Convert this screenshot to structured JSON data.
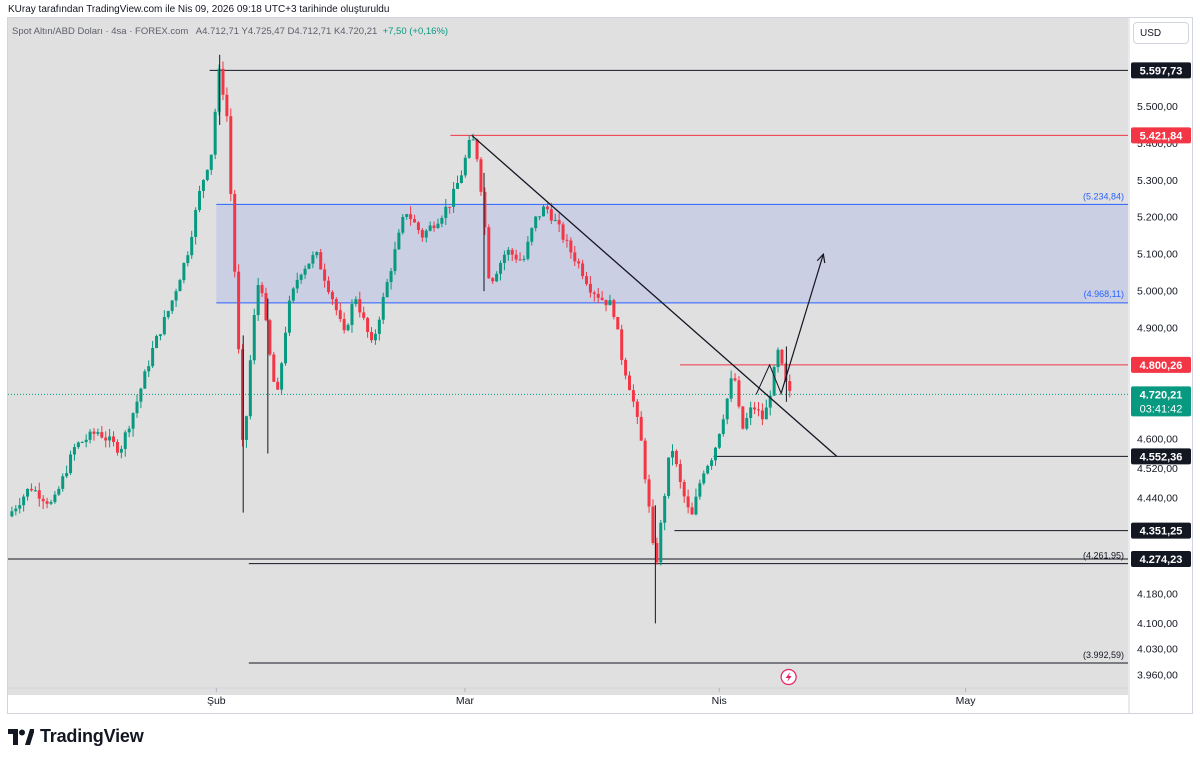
{
  "header": {
    "published_line": "KUray tarafından TradingView.com ile Nis 09, 2026 09:18 UTC+3 tarihinde oluşturuldu",
    "symbol": "Spot Altın/ABD Doları · 4sa · FOREX.com",
    "ohlc_prefix": "A4.712,71  Y4.725,47  D4.712,71  K4.720,21",
    "change": "+7,50 (+0,16%)",
    "currency_button": "USD"
  },
  "footer": {
    "brand": "TradingView"
  },
  "colors": {
    "up": "#089981",
    "down": "#f23645",
    "zone_fill": "#c5cbe3",
    "zone_line": "#2962ff",
    "red_line": "#f23645",
    "black": "#131722",
    "axis_text": "#131722"
  },
  "chart_data": {
    "type": "candlestick",
    "title": "Spot Altın/ABD Doları",
    "timeframe": "4sa",
    "ylim": [
      3925,
      5680
    ],
    "y_ticks": [
      {
        "value": 5500,
        "label": "5.500,00"
      },
      {
        "value": 5400,
        "label": "5.400,00"
      },
      {
        "value": 5300,
        "label": "5.300,00"
      },
      {
        "value": 5200,
        "label": "5.200,00"
      },
      {
        "value": 5100,
        "label": "5.100,00"
      },
      {
        "value": 5000,
        "label": "5.000,00"
      },
      {
        "value": 4900,
        "label": "4.900,00"
      },
      {
        "value": 4600,
        "label": "4.600,00"
      },
      {
        "value": 4520,
        "label": "4.520,00"
      },
      {
        "value": 4440,
        "label": "4.440,00"
      },
      {
        "value": 4180,
        "label": "4.180,00"
      },
      {
        "value": 4100,
        "label": "4.100,00"
      },
      {
        "value": 4030,
        "label": "4.030,00"
      },
      {
        "value": 3960,
        "label": "3.960,00"
      }
    ],
    "x_labels": [
      {
        "label": "Şub",
        "t": 0.186
      },
      {
        "label": "Mar",
        "t": 0.408
      },
      {
        "label": "Nis",
        "t": 0.635
      },
      {
        "label": "May",
        "t": 0.855
      }
    ],
    "price_badges": [
      {
        "value": 5597.73,
        "label": "5.597,73",
        "style": "black"
      },
      {
        "value": 5421.84,
        "label": "5.421,84",
        "style": "red"
      },
      {
        "value": 4800.26,
        "label": "4.800,26",
        "style": "red"
      },
      {
        "value": 4720.21,
        "label": "4.720,21",
        "countdown": "03:41:42",
        "style": "green"
      },
      {
        "value": 4552.36,
        "label": "4.552,36",
        "style": "black"
      },
      {
        "value": 4351.25,
        "label": "4.351,25",
        "style": "black"
      },
      {
        "value": 4274.23,
        "label": "4.274,23",
        "style": "black"
      }
    ],
    "zone": {
      "top": 5234.84,
      "bottom": 4968.11,
      "top_label": "(5.234,84)",
      "bottom_label": "(4.968,11)"
    },
    "level_labels": [
      {
        "value": 4261.95,
        "label": "(4.261,95)"
      },
      {
        "value": 3992.59,
        "label": "(3.992,59)"
      }
    ],
    "horizontal_lines": [
      {
        "value": 5597.73,
        "t_from": 0.18,
        "t_to": 1.0,
        "color": "black"
      },
      {
        "value": 5421.84,
        "t_from": 0.395,
        "t_to": 1.0,
        "color": "red"
      },
      {
        "value": 4800.26,
        "t_from": 0.6,
        "t_to": 1.0,
        "color": "red"
      },
      {
        "value": 4552.36,
        "t_from": 0.63,
        "t_to": 1.0,
        "color": "black"
      },
      {
        "value": 4351.25,
        "t_from": 0.595,
        "t_to": 1.0,
        "color": "black"
      },
      {
        "value": 4274.23,
        "t_from": 0.0,
        "t_to": 1.0,
        "color": "black"
      },
      {
        "value": 4261.95,
        "t_from": 0.215,
        "t_to": 1.0,
        "color": "black"
      },
      {
        "value": 3992.59,
        "t_from": 0.215,
        "t_to": 1.0,
        "color": "black"
      }
    ],
    "trendline": {
      "t1": 0.414,
      "v1": 5421.84,
      "t2": 0.74,
      "v2": 4552.36
    },
    "projection": [
      {
        "t": 0.69,
        "v": 4720
      },
      {
        "t": 0.728,
        "v": 5100
      }
    ],
    "small_zigzag": [
      {
        "t": 0.668,
        "v": 4720
      },
      {
        "t": 0.68,
        "v": 4800
      },
      {
        "t": 0.69,
        "v": 4725
      }
    ],
    "price_path": [
      [
        0.0,
        4390
      ],
      [
        0.02,
        4470
      ],
      [
        0.04,
        4420
      ],
      [
        0.06,
        4580
      ],
      [
        0.08,
        4620
      ],
      [
        0.1,
        4570
      ],
      [
        0.115,
        4700
      ],
      [
        0.13,
        4850
      ],
      [
        0.145,
        4960
      ],
      [
        0.16,
        5100
      ],
      [
        0.172,
        5280
      ],
      [
        0.182,
        5380
      ],
      [
        0.188,
        5597
      ],
      [
        0.195,
        5500
      ],
      [
        0.2,
        5200
      ],
      [
        0.205,
        4900
      ],
      [
        0.21,
        4540
      ],
      [
        0.218,
        4880
      ],
      [
        0.225,
        5060
      ],
      [
        0.232,
        4860
      ],
      [
        0.24,
        4700
      ],
      [
        0.25,
        4950
      ],
      [
        0.26,
        5050
      ],
      [
        0.275,
        5100
      ],
      [
        0.29,
        4980
      ],
      [
        0.3,
        4880
      ],
      [
        0.31,
        4990
      ],
      [
        0.325,
        4850
      ],
      [
        0.34,
        5040
      ],
      [
        0.355,
        5220
      ],
      [
        0.37,
        5150
      ],
      [
        0.385,
        5200
      ],
      [
        0.395,
        5240
      ],
      [
        0.405,
        5320
      ],
      [
        0.414,
        5421
      ],
      [
        0.42,
        5350
      ],
      [
        0.425,
        5200
      ],
      [
        0.43,
        5020
      ],
      [
        0.445,
        5110
      ],
      [
        0.46,
        5080
      ],
      [
        0.47,
        5190
      ],
      [
        0.48,
        5230
      ],
      [
        0.49,
        5180
      ],
      [
        0.5,
        5120
      ],
      [
        0.51,
        5070
      ],
      [
        0.52,
        5010
      ],
      [
        0.53,
        4980
      ],
      [
        0.54,
        4960
      ],
      [
        0.548,
        4820
      ],
      [
        0.557,
        4720
      ],
      [
        0.565,
        4600
      ],
      [
        0.572,
        4420
      ],
      [
        0.578,
        4240
      ],
      [
        0.585,
        4420
      ],
      [
        0.592,
        4590
      ],
      [
        0.6,
        4480
      ],
      [
        0.61,
        4380
      ],
      [
        0.62,
        4510
      ],
      [
        0.63,
        4560
      ],
      [
        0.64,
        4680
      ],
      [
        0.648,
        4785
      ],
      [
        0.655,
        4620
      ],
      [
        0.665,
        4690
      ],
      [
        0.675,
        4650
      ],
      [
        0.68,
        4720
      ],
      [
        0.688,
        4840
      ],
      [
        0.693,
        4760
      ],
      [
        0.698,
        4720
      ]
    ]
  },
  "watermark_icon": "lightning-icon"
}
